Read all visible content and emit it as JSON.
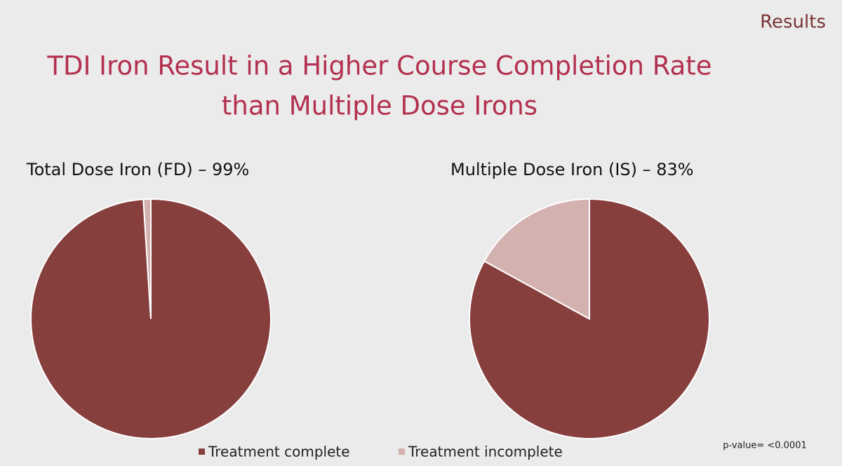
{
  "header": "Results",
  "title": [
    "TDI Iron Result in a Higher Course Completion Rate",
    "than Multiple Dose Irons"
  ],
  "legend": {
    "categories": [
      "Treatment complete",
      "Treatment incomplete"
    ],
    "colors": [
      "#873f3e",
      "#d3b1af"
    ]
  },
  "chart_data": [
    {
      "type": "pie",
      "title": "Total Dose Iron (FD) – 99%",
      "values": [
        99,
        1
      ]
    },
    {
      "type": "pie",
      "title": "Multiple Dose Iron (IS) – 83%",
      "values": [
        83,
        17
      ]
    }
  ],
  "note": "p-value= <0.0001"
}
